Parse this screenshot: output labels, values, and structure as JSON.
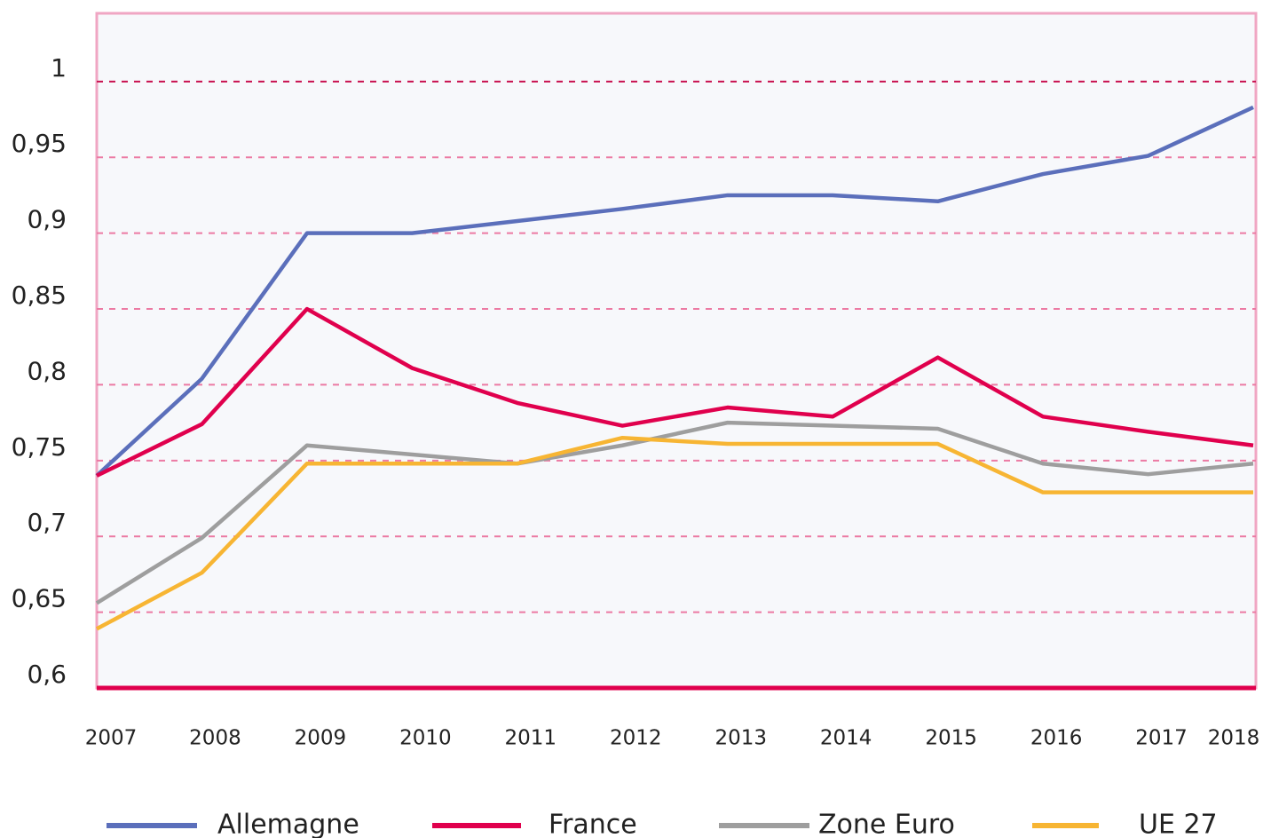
{
  "chart_data": {
    "type": "line",
    "categories": [
      "2007",
      "2008",
      "2009",
      "2010",
      "2011",
      "2012",
      "2013",
      "2014",
      "2015",
      "2016",
      "2017",
      "2018"
    ],
    "series": [
      {
        "name": "Allemagne",
        "color": "#5b6fbb",
        "values": [
          0.74,
          0.804,
          0.9,
          0.9,
          0.908,
          0.916,
          0.925,
          0.925,
          0.921,
          0.939,
          0.951,
          0.983
        ]
      },
      {
        "name": "France",
        "color": "#e0004d",
        "values": [
          0.74,
          0.774,
          0.85,
          0.811,
          0.788,
          0.773,
          0.785,
          0.779,
          0.818,
          0.779,
          0.769,
          0.76
        ]
      },
      {
        "name": "Zone Euro",
        "color": "#9e9e9e",
        "values": [
          0.656,
          0.699,
          0.76,
          0.754,
          0.748,
          0.76,
          0.775,
          0.773,
          0.771,
          0.748,
          0.741,
          0.748
        ]
      },
      {
        "name": "UE 27",
        "color": "#f7b533",
        "values": [
          0.639,
          0.676,
          0.748,
          0.748,
          0.748,
          0.765,
          0.761,
          0.761,
          0.761,
          0.729,
          0.729,
          0.729
        ]
      }
    ],
    "ylim": [
      0.6,
      1.045
    ],
    "yticks": [
      {
        "value": 0.6,
        "label": "0,6"
      },
      {
        "value": 0.65,
        "label": "0,65"
      },
      {
        "value": 0.7,
        "label": "0,7"
      },
      {
        "value": 0.75,
        "label": "0,75"
      },
      {
        "value": 0.8,
        "label": "0,8"
      },
      {
        "value": 0.85,
        "label": "0,85"
      },
      {
        "value": 0.9,
        "label": "0,9"
      },
      {
        "value": 0.95,
        "label": "0,95"
      },
      1
    ],
    "grid": true
  }
}
